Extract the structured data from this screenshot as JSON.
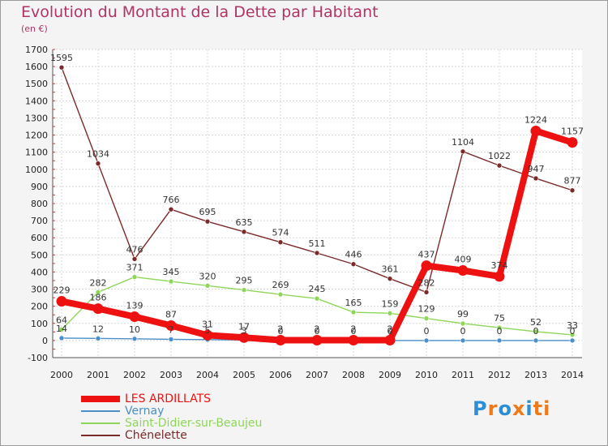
{
  "title": "Evolution du Montant de la Dette par Habitant",
  "subtitle": "(en €)",
  "logo": {
    "text": "Proxiti",
    "colors": [
      "#2a8fd6",
      "#f07a18",
      "#2a8fd6",
      "#f07a18",
      "#2a8fd6",
      "#f07a18",
      "#f07a18"
    ]
  },
  "chart_data": {
    "type": "line",
    "title": "Evolution du Montant de la Dette par Habitant",
    "ylabel": "(en €)",
    "xlabel": "",
    "ylim": [
      -100,
      1700
    ],
    "yticks": [
      -100,
      0,
      100,
      200,
      300,
      400,
      500,
      600,
      700,
      800,
      900,
      1000,
      1100,
      1200,
      1300,
      1400,
      1500,
      1600,
      1700
    ],
    "categories": [
      "2000",
      "2001",
      "2002",
      "2003",
      "2004",
      "2005",
      "2006",
      "2007",
      "2008",
      "2009",
      "2010",
      "2011",
      "2012",
      "2013",
      "2014"
    ],
    "grid": true,
    "legend_position": "bottom-left",
    "series": [
      {
        "name": "Chénelette",
        "color": "#7b2a2a",
        "values": [
          1595,
          1034,
          476,
          766,
          695,
          635,
          574,
          511,
          446,
          361,
          282,
          1104,
          1022,
          947,
          877
        ]
      },
      {
        "name": "Saint-Didier-sur-Beaujeu",
        "color": "#8ed65a",
        "values": [
          64,
          282,
          371,
          345,
          320,
          295,
          269,
          245,
          165,
          159,
          129,
          99,
          75,
          52,
          33
        ]
      },
      {
        "name": "Vernay",
        "color": "#4a8fc8",
        "values": [
          14,
          12,
          10,
          7,
          5,
          3,
          0,
          0,
          0,
          0,
          0,
          0,
          0,
          0,
          0
        ]
      },
      {
        "name": "LES ARDILLATS",
        "color": "#ee1111",
        "values": [
          229,
          186,
          139,
          87,
          31,
          17,
          2,
          2,
          2,
          2,
          437,
          409,
          374,
          1224,
          1157
        ]
      }
    ]
  },
  "legend": [
    {
      "label": "LES ARDILLATS",
      "color": "#ee1111",
      "thickness": 8
    },
    {
      "label": "Vernay",
      "color": "#4a8fc8",
      "thickness": 2
    },
    {
      "label": "Saint-Didier-sur-Beaujeu",
      "color": "#8ed65a",
      "thickness": 2
    },
    {
      "label": "Chénelette",
      "color": "#7b2a2a",
      "thickness": 2
    }
  ]
}
